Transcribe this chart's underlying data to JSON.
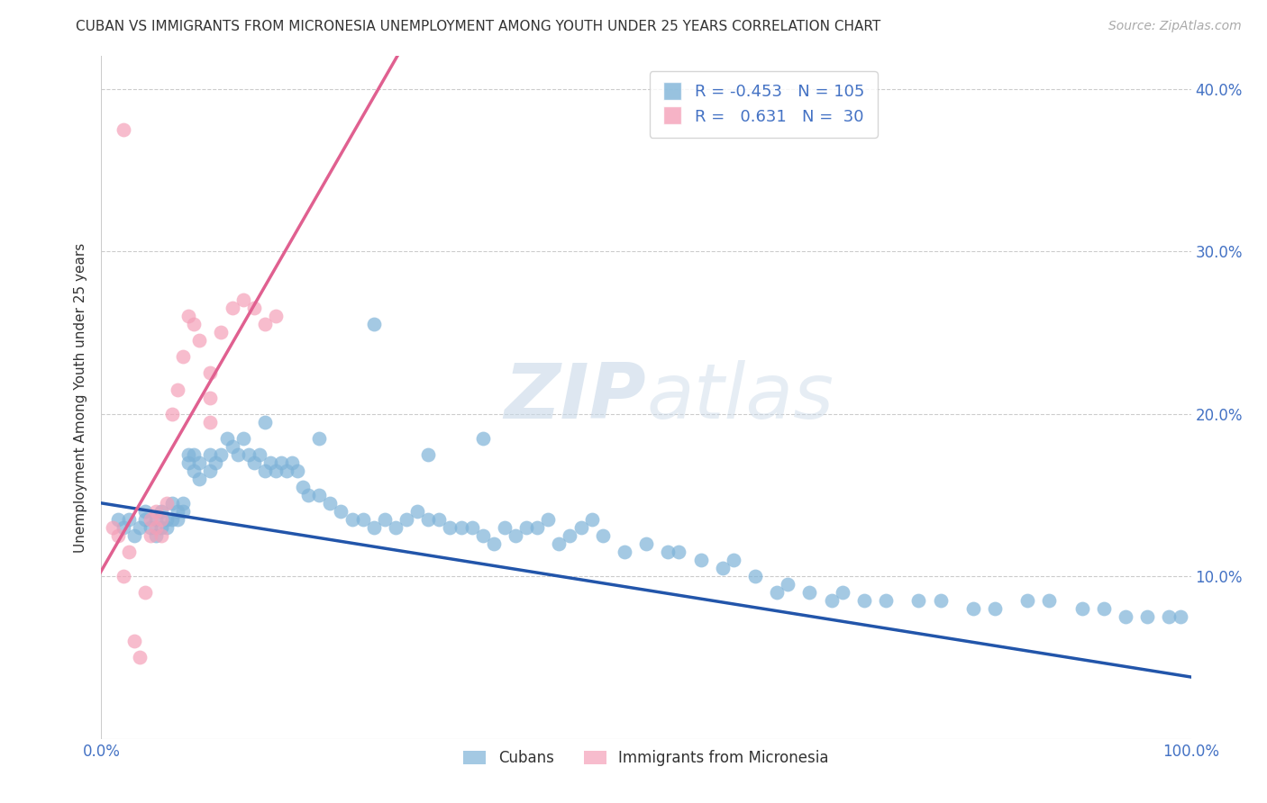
{
  "title": "CUBAN VS IMMIGRANTS FROM MICRONESIA UNEMPLOYMENT AMONG YOUTH UNDER 25 YEARS CORRELATION CHART",
  "source": "Source: ZipAtlas.com",
  "ylabel": "Unemployment Among Youth under 25 years",
  "x_min": 0.0,
  "x_max": 1.0,
  "y_min": 0.0,
  "y_max": 0.42,
  "cubans_R": -0.453,
  "cubans_N": 105,
  "micronesia_R": 0.631,
  "micronesia_N": 30,
  "cubans_color": "#7EB3D8",
  "micronesia_color": "#F4A0B8",
  "cubans_line_color": "#2255AA",
  "micronesia_line_color": "#E06090",
  "legend_label_cubans": "Cubans",
  "legend_label_micronesia": "Immigrants from Micronesia",
  "cubans_x": [
    0.015,
    0.02,
    0.025,
    0.03,
    0.035,
    0.04,
    0.04,
    0.045,
    0.05,
    0.05,
    0.055,
    0.055,
    0.06,
    0.06,
    0.065,
    0.065,
    0.07,
    0.07,
    0.075,
    0.075,
    0.08,
    0.08,
    0.085,
    0.085,
    0.09,
    0.09,
    0.1,
    0.1,
    0.105,
    0.11,
    0.115,
    0.12,
    0.125,
    0.13,
    0.135,
    0.14,
    0.145,
    0.15,
    0.155,
    0.16,
    0.165,
    0.17,
    0.175,
    0.18,
    0.185,
    0.19,
    0.2,
    0.21,
    0.22,
    0.23,
    0.24,
    0.25,
    0.26,
    0.27,
    0.28,
    0.29,
    0.3,
    0.31,
    0.32,
    0.33,
    0.34,
    0.35,
    0.36,
    0.37,
    0.38,
    0.39,
    0.4,
    0.41,
    0.42,
    0.43,
    0.44,
    0.45,
    0.46,
    0.48,
    0.5,
    0.52,
    0.53,
    0.55,
    0.57,
    0.58,
    0.6,
    0.62,
    0.63,
    0.65,
    0.67,
    0.68,
    0.7,
    0.72,
    0.75,
    0.77,
    0.8,
    0.82,
    0.85,
    0.87,
    0.9,
    0.92,
    0.94,
    0.96,
    0.98,
    0.99,
    0.25,
    0.15,
    0.35,
    0.2,
    0.3
  ],
  "cubans_y": [
    0.135,
    0.13,
    0.135,
    0.125,
    0.13,
    0.135,
    0.14,
    0.13,
    0.125,
    0.135,
    0.13,
    0.14,
    0.135,
    0.13,
    0.135,
    0.145,
    0.14,
    0.135,
    0.14,
    0.145,
    0.17,
    0.175,
    0.165,
    0.175,
    0.16,
    0.17,
    0.165,
    0.175,
    0.17,
    0.175,
    0.185,
    0.18,
    0.175,
    0.185,
    0.175,
    0.17,
    0.175,
    0.165,
    0.17,
    0.165,
    0.17,
    0.165,
    0.17,
    0.165,
    0.155,
    0.15,
    0.15,
    0.145,
    0.14,
    0.135,
    0.135,
    0.13,
    0.135,
    0.13,
    0.135,
    0.14,
    0.135,
    0.135,
    0.13,
    0.13,
    0.13,
    0.125,
    0.12,
    0.13,
    0.125,
    0.13,
    0.13,
    0.135,
    0.12,
    0.125,
    0.13,
    0.135,
    0.125,
    0.115,
    0.12,
    0.115,
    0.115,
    0.11,
    0.105,
    0.11,
    0.1,
    0.09,
    0.095,
    0.09,
    0.085,
    0.09,
    0.085,
    0.085,
    0.085,
    0.085,
    0.08,
    0.08,
    0.085,
    0.085,
    0.08,
    0.08,
    0.075,
    0.075,
    0.075,
    0.075,
    0.255,
    0.195,
    0.185,
    0.185,
    0.175
  ],
  "micronesia_x": [
    0.01,
    0.015,
    0.02,
    0.025,
    0.03,
    0.035,
    0.04,
    0.045,
    0.045,
    0.05,
    0.05,
    0.055,
    0.055,
    0.06,
    0.065,
    0.07,
    0.075,
    0.08,
    0.085,
    0.09,
    0.1,
    0.1,
    0.1,
    0.11,
    0.12,
    0.13,
    0.14,
    0.15,
    0.16,
    0.02
  ],
  "micronesia_y": [
    0.13,
    0.125,
    0.1,
    0.115,
    0.06,
    0.05,
    0.09,
    0.135,
    0.125,
    0.13,
    0.14,
    0.125,
    0.135,
    0.145,
    0.2,
    0.215,
    0.235,
    0.26,
    0.255,
    0.245,
    0.195,
    0.21,
    0.225,
    0.25,
    0.265,
    0.27,
    0.265,
    0.255,
    0.26,
    0.375
  ],
  "micronesia_line_x0": -0.02,
  "micronesia_line_x1": 0.4,
  "cubans_line_x0": 0.0,
  "cubans_line_x1": 1.0,
  "cubans_line_y0": 0.145,
  "cubans_line_y1": 0.038
}
